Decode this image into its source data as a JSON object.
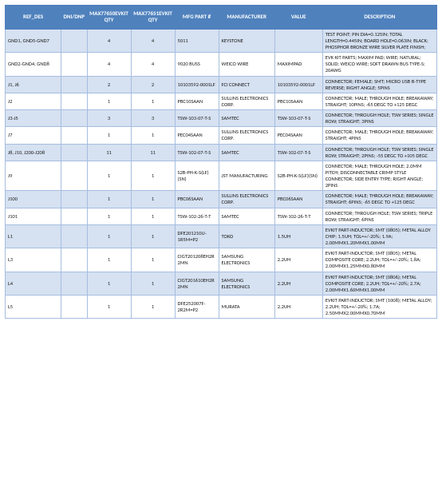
{
  "table": {
    "columns": [
      {
        "key": "ref",
        "label": "REF_DES",
        "class": "c-ref"
      },
      {
        "key": "dni",
        "label": "DNI/DNP",
        "class": "c-dni"
      },
      {
        "key": "q1",
        "label": "MAX77650EVKIT QTY",
        "class": "c-q1"
      },
      {
        "key": "q2",
        "label": "MAX77651EVKIT QTY",
        "class": "c-q2"
      },
      {
        "key": "mfg",
        "label": "MFG PART #",
        "class": "c-mfg"
      },
      {
        "key": "man",
        "label": "MANUFACTURER",
        "class": "c-man"
      },
      {
        "key": "val",
        "label": "VALUE",
        "class": "c-val"
      },
      {
        "key": "desc",
        "label": "DESCRIPTION",
        "class": "c-desc"
      }
    ],
    "center_keys": [
      "q1",
      "q2"
    ],
    "rows": [
      {
        "ref": "GND1, GND5-GND7",
        "dni": "",
        "q1": "4",
        "q2": "4",
        "mfg": "5011",
        "man": "KEYSTONE",
        "val": "",
        "desc": "TEST POINT; PIN DIA=0.125IN; TOTAL LENGTH=0.445IN; BOARD HOLE=0.063IN; BLACK; PHOSPHOR BRONZE WIRE SILVER PLATE FINISH;"
      },
      {
        "ref": "GND2-GND4, GND8",
        "dni": "",
        "q1": "4",
        "q2": "4",
        "mfg": "9020 BUSS",
        "man": "WEICO WIRE",
        "val": "MAXIMPAD",
        "desc": "EVK KIT PARTS; MAXIM PAD; WIRE; NATURAL; SOLID; WEICO WIRE; SOFT DRAWN BUS TYPE-S; 20AWG"
      },
      {
        "ref": "J1, J6",
        "dni": "",
        "q1": "2",
        "q2": "2",
        "mfg": "10103592-0001LF",
        "man": "FCI CONNECT",
        "val": "10103592-0001LF",
        "desc": "CONNECTOR; FEMALE; SMT; MICRO USB B-TYPE REVERSE; RIGHT ANGLE; 5PINS"
      },
      {
        "ref": "J2",
        "dni": "",
        "q1": "1",
        "q2": "1",
        "mfg": "PBC10SAAN",
        "man": "SULLINS ELECTRONICS CORP.",
        "val": "PBC10SAAN",
        "desc": "CONNECTOR; MALE; THROUGH HOLE; BREAKAWAY; STRAIGHT; 10PINS; -65 DEGC TO +125 DEGC"
      },
      {
        "ref": "J3-J5",
        "dni": "",
        "q1": "3",
        "q2": "3",
        "mfg": "TSW-103-07-T-S",
        "man": "SAMTEC",
        "val": "TSW-103-07-T-S",
        "desc": "CONNECTOR; THROUGH HOLE; TSW SERIES; SINGLE ROW; STRAIGHT; 3PINS"
      },
      {
        "ref": "J7",
        "dni": "",
        "q1": "1",
        "q2": "1",
        "mfg": "PEC04SAAN",
        "man": "SULLINS ELECTRONICS CORP.",
        "val": "PEC04SAAN",
        "desc": "CONNECTOR; MALE; THROUGH HOLE; BREAKAWAY; STRAIGHT; 4PINS"
      },
      {
        "ref": "J8, J10, J200-J208",
        "dni": "",
        "q1": "11",
        "q2": "11",
        "mfg": "TSW-102-07-T-S",
        "man": "SAMTEC",
        "val": "TSW-102-07-T-S",
        "desc": "CONNECTOR; THROUGH HOLE; TSW SERIES; SINGLE ROW; STRAIGHT; 2PINS; -55 DEGC TO +105 DEGC"
      },
      {
        "ref": "J9",
        "dni": "",
        "q1": "1",
        "q2": "1",
        "mfg": "S2B-PH-K-S(LF)(SN)",
        "man": "JST MANUFACTURING",
        "val": "S2B-PH-K-S(LF)(SN)",
        "desc": "CONNECTOR; MALE; THROUGH HOLE; 2.0MM PITCH; DISCONNECTABLE CRIMP STYLE CONNECTOR; SIDE ENTRY TYPE; RIGHT ANGLE; 2PINS"
      },
      {
        "ref": "J100",
        "dni": "",
        "q1": "1",
        "q2": "1",
        "mfg": "PBC06SAAN",
        "man": "SULLINS ELECTRONICS CORP.",
        "val": "PBC06SAAN",
        "desc": "CONNECTOR; MALE; THROUGH HOLE; BREAKAWAY; STRAIGHT; 6PINS; -65 DEGC TO +125 DEGC"
      },
      {
        "ref": "J101",
        "dni": "",
        "q1": "1",
        "q2": "1",
        "mfg": "TSW-102-26-T-T",
        "man": "SAMTEC",
        "val": "TSW-102-26-T-T",
        "desc": "CONNECTOR; THROUGH HOLE; TSW SERIES; TRIPLE ROW; STRAIGHT; 6PINS"
      },
      {
        "ref": "L1",
        "dni": "",
        "q1": "1",
        "q2": "1",
        "mfg": "DFE201210U-1R5M=P2",
        "man": "TOKO",
        "val": "1.5UH",
        "desc": "EVKIT PART-INDUCTOR; SMT (0805); METAL ALLOY CHIP; 1.5UH; TOL=+/-20%; 1.9A; 2.00MMX1.20MMX1.00MM"
      },
      {
        "ref": "L3",
        "dni": "",
        "q1": "1",
        "q2": "1",
        "mfg": "CIGT201208EH2R2MN",
        "man": "SAMSUNG ELECTRONICS",
        "val": "2.2UH",
        "desc": "EVKIT PART-INDUCTOR; SMT (0805); METAL COMPOSITE CORE; 2.2UH; TOL=+/-20%; 1.8A; 2.00MMX1.25MMX0.80MM"
      },
      {
        "ref": "L4",
        "dni": "",
        "q1": "1",
        "q2": "1",
        "mfg": "CIGT201610EH2R2MN",
        "man": "SAMSUNG ELECTRONICS",
        "val": "2.2UH",
        "desc": "EVKIT PART-INDUCTOR; SMT (0806); METAL COMPOSITE CORE; 2.2UH; TOL=+/-20%; 2.7A; 2.00MMX1.60MMX1.00MM"
      },
      {
        "ref": "L5",
        "dni": "",
        "q1": "1",
        "q2": "1",
        "mfg": "DFE252007F-2R2M=P2",
        "man": "MURATA",
        "val": "2.2UH",
        "desc": "EVKIT PART-INDUCTOR; SMT (1008); METAL ALLOY; 2.2UH; TOL=+/-20%; 1.7A; 2.50MMX2.00MMX0.70MM"
      }
    ],
    "colors": {
      "header_bg": "#4f81bd",
      "header_fg": "#ffffff",
      "row_odd_bg": "#d6e1f1",
      "row_even_bg": "#ffffff",
      "border": "#a6bde0"
    }
  }
}
